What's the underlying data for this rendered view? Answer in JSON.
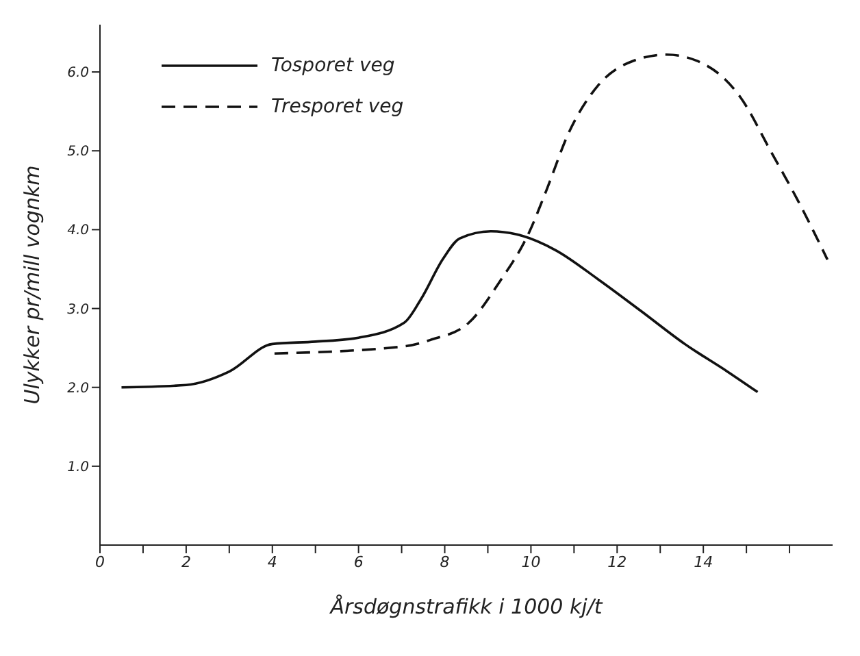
{
  "chart_data": {
    "type": "line",
    "xlabel": "Årsdøgnstrafikk i 1000 kj/t",
    "ylabel": "Ulykker pr/mill vognkm",
    "xlim": [
      0,
      17
    ],
    "ylim": [
      0,
      6.6
    ],
    "xticks": [
      0,
      {
        "value": 1,
        "label": null
      },
      2,
      {
        "value": 3,
        "label": null
      },
      4,
      {
        "value": 5,
        "label": null
      },
      6,
      {
        "value": 7,
        "label": null
      },
      8,
      {
        "value": 9,
        "label": null
      },
      10,
      {
        "value": 11,
        "label": null
      },
      12,
      {
        "value": 13,
        "label": null
      },
      14,
      {
        "value": 15,
        "label": null
      },
      {
        "value": 16,
        "label": null
      }
    ],
    "yticks": [
      {
        "value": 1,
        "label": "1.0"
      },
      {
        "value": 2,
        "label": "2.0"
      },
      {
        "value": 3,
        "label": "3.0"
      },
      {
        "value": 4,
        "label": "4.0"
      },
      {
        "value": 5,
        "label": "5.0"
      },
      {
        "value": 6,
        "label": "6.0"
      }
    ],
    "grid": false,
    "legend": "top left",
    "marker": "none",
    "series": [
      {
        "name": "Tosporet veg",
        "color": "#111111",
        "line_style": "solid",
        "x": [
          0.5,
          2,
          3,
          4,
          5,
          6,
          7.06,
          7.45,
          7.96,
          8.35,
          9.07,
          9.67,
          10.57,
          11.56,
          12.55,
          13.57,
          14.56,
          15.26
        ],
        "values": [
          2.0,
          2.03,
          2.2,
          2.55,
          2.58,
          2.63,
          2.82,
          3.12,
          3.63,
          3.89,
          3.98,
          3.94,
          3.74,
          3.37,
          2.97,
          2.55,
          2.2,
          1.94
        ]
      },
      {
        "name": "Tresporet veg",
        "color": "#111111",
        "line_style": "dashed",
        "x": [
          4.05,
          7.06,
          7.66,
          8.56,
          9.25,
          9.97,
          10.36,
          10.87,
          11.56,
          12.37,
          13.15,
          14.05,
          14.86,
          15.56,
          16.28,
          16.88
        ],
        "values": [
          2.43,
          2.52,
          2.6,
          2.82,
          3.32,
          3.98,
          4.5,
          5.22,
          5.83,
          6.14,
          6.22,
          6.09,
          5.68,
          5.0,
          4.28,
          3.62
        ]
      }
    ]
  }
}
